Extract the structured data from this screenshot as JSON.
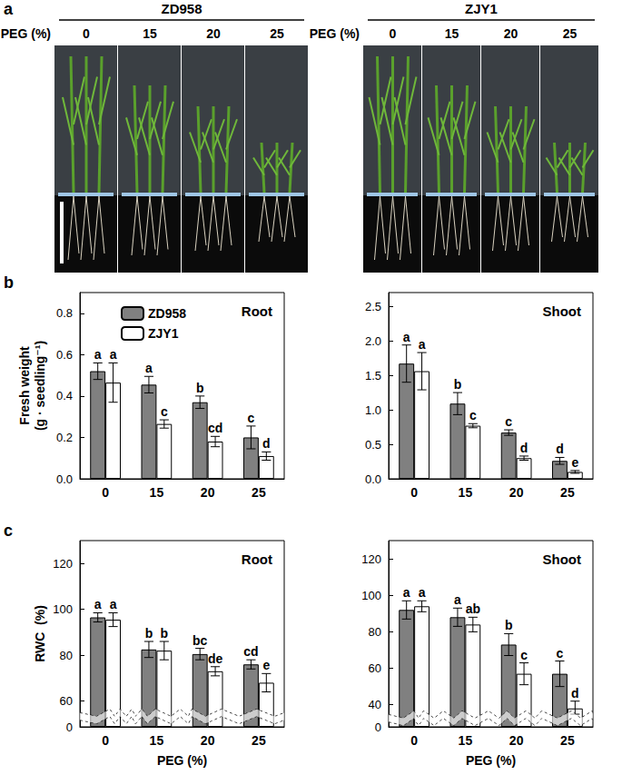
{
  "photo_panel": {
    "panel_label": "a",
    "axis_label": "PEG (%)",
    "groups": [
      {
        "name": "ZD958",
        "levels": [
          "0",
          "15",
          "20",
          "25"
        ]
      },
      {
        "name": "ZJY1",
        "levels": [
          "0",
          "15",
          "20",
          "25"
        ]
      }
    ]
  },
  "chart_data": [
    {
      "type": "bar",
      "panel_label": "b",
      "title": "Root",
      "y_label": "Fresh weight\n(g · seedling⁻¹)",
      "categories": [
        "0",
        "15",
        "20",
        "25"
      ],
      "ylim": [
        0,
        0.9
      ],
      "yticks": [
        {
          "value": 0,
          "label": "0.0"
        },
        0.2,
        0.4,
        0.6,
        0.8
      ],
      "legend": "upper left",
      "grid": false,
      "series": [
        {
          "name": "ZD958",
          "color": "#808080",
          "values": [
            0.52,
            0.455,
            0.37,
            0.2
          ],
          "errors": [
            0.04,
            0.04,
            0.03,
            0.055
          ],
          "letters": [
            "a",
            "a",
            "b",
            "c"
          ]
        },
        {
          "name": "ZJY1",
          "color": "#ffffff",
          "values": [
            0.465,
            0.265,
            0.18,
            0.11
          ],
          "errors": [
            0.095,
            0.02,
            0.025,
            0.02
          ],
          "letters": [
            "a",
            "c",
            "cd",
            "d"
          ]
        }
      ]
    },
    {
      "type": "bar",
      "title": "Shoot",
      "categories": [
        "0",
        "15",
        "20",
        "25"
      ],
      "ylim": [
        0,
        2.7
      ],
      "yticks": [
        {
          "value": 0,
          "label": "0.0"
        },
        0.5,
        {
          "value": 1,
          "label": "1.0"
        },
        1.5,
        {
          "value": 2,
          "label": "2.0"
        },
        2.5
      ],
      "grid": false,
      "series": [
        {
          "name": "ZD958",
          "color": "#808080",
          "values": [
            1.67,
            1.09,
            0.67,
            0.26
          ],
          "errors": [
            0.27,
            0.16,
            0.04,
            0.05
          ],
          "letters": [
            "a",
            "b",
            "c",
            "d"
          ]
        },
        {
          "name": "ZJY1",
          "color": "#ffffff",
          "values": [
            1.56,
            0.77,
            0.3,
            0.1
          ],
          "errors": [
            0.27,
            0.03,
            0.03,
            0.02
          ],
          "letters": [
            "a",
            "c",
            "d",
            "e"
          ]
        }
      ]
    },
    {
      "type": "bar",
      "panel_label": "c",
      "title": "Root",
      "y_label": "RWC  (%)",
      "x_label": "PEG (%)",
      "categories": [
        "0",
        "15",
        "20",
        "25"
      ],
      "ylim": [
        0,
        130
      ],
      "yticks": [
        0,
        60,
        80,
        100,
        120
      ],
      "ybreak": [
        3,
        55
      ],
      "grid": false,
      "series": [
        {
          "name": "ZD958",
          "color": "#808080",
          "values": [
            96.5,
            82.5,
            80.5,
            76
          ],
          "errors": [
            2,
            3.5,
            2.5,
            2
          ],
          "letters": [
            "a",
            "b",
            "bc",
            "cd"
          ]
        },
        {
          "name": "ZJY1",
          "color": "#ffffff",
          "values": [
            95.5,
            82,
            73,
            68
          ],
          "errors": [
            3,
            4,
            2,
            4
          ],
          "letters": [
            "a",
            "b",
            "de",
            "e"
          ]
        }
      ]
    },
    {
      "type": "bar",
      "title": "Shoot",
      "x_label": "PEG (%)",
      "categories": [
        "0",
        "15",
        "20",
        "25"
      ],
      "ylim": [
        0,
        130
      ],
      "yticks": [
        0,
        40,
        60,
        80,
        100,
        120
      ],
      "ybreak": [
        3,
        35
      ],
      "grid": false,
      "series": [
        {
          "name": "ZD958",
          "color": "#808080",
          "values": [
            92,
            88,
            73,
            57
          ],
          "errors": [
            5,
            5,
            6,
            7
          ],
          "letters": [
            "a",
            "a",
            "b",
            "c"
          ]
        },
        {
          "name": "ZJY1",
          "color": "#ffffff",
          "values": [
            94,
            84,
            57,
            38
          ],
          "errors": [
            3,
            4,
            6,
            4
          ],
          "letters": [
            "a",
            "ab",
            "c",
            "d"
          ]
        }
      ]
    }
  ]
}
